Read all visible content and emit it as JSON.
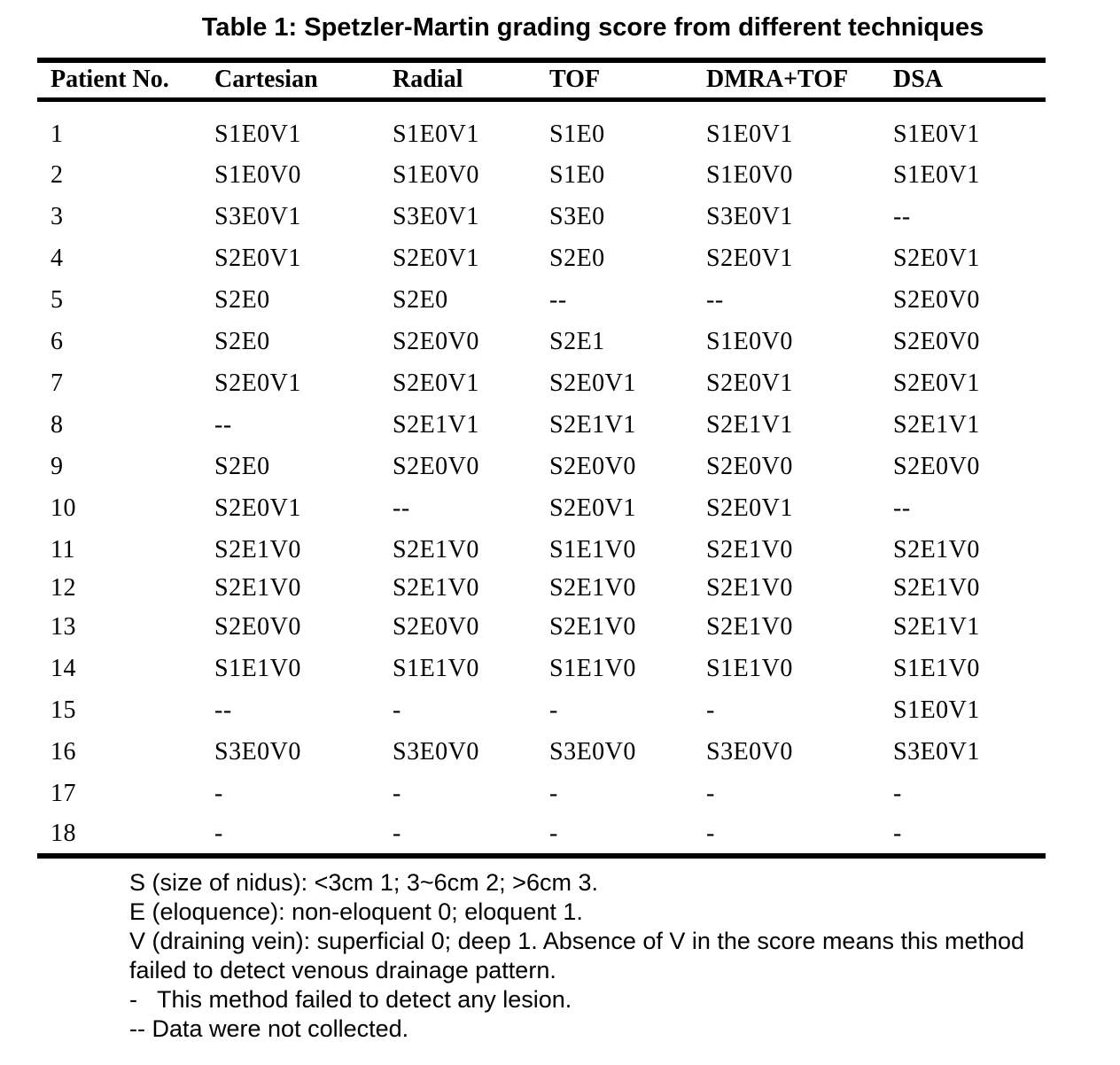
{
  "title": "Table 1: Spetzler-Martin grading score from different techniques",
  "table": {
    "columns": [
      "Patient No.",
      "Cartesian",
      "Radial",
      "TOF",
      "DMRA+TOF",
      "DSA"
    ],
    "rows": [
      [
        "1",
        "S1E0V1",
        "S1E0V1",
        "S1E0",
        "S1E0V1",
        "S1E0V1"
      ],
      [
        "2",
        "S1E0V0",
        "S1E0V0",
        "S1E0",
        "S1E0V0",
        "S1E0V1"
      ],
      [
        "3",
        "S3E0V1",
        "S3E0V1",
        "S3E0",
        "S3E0V1",
        "--"
      ],
      [
        "4",
        "S2E0V1",
        "S2E0V1",
        "S2E0",
        "S2E0V1",
        "S2E0V1"
      ],
      [
        "5",
        "S2E0",
        "S2E0",
        "--",
        "--",
        "S2E0V0"
      ],
      [
        "6",
        "S2E0",
        "S2E0V0",
        "S2E1",
        "S1E0V0",
        "S2E0V0"
      ],
      [
        "7",
        "S2E0V1",
        "S2E0V1",
        "S2E0V1",
        "S2E0V1",
        "S2E0V1"
      ],
      [
        "8",
        "--",
        "S2E1V1",
        "S2E1V1",
        "S2E1V1",
        "S2E1V1"
      ],
      [
        "9",
        "S2E0",
        "S2E0V0",
        "S2E0V0",
        "S2E0V0",
        "S2E0V0"
      ],
      [
        "10",
        "S2E0V1",
        "--",
        "S2E0V1",
        "S2E0V1",
        "--"
      ],
      [
        "11",
        "S2E1V0",
        "S2E1V0",
        "S1E1V0",
        "S2E1V0",
        "S2E1V0"
      ],
      [
        "12",
        "S2E1V0",
        "S2E1V0",
        "S2E1V0",
        "S2E1V0",
        "S2E1V0"
      ],
      [
        "13",
        "S2E0V0",
        "S2E0V0",
        "S2E1V0",
        "S2E1V0",
        "S2E1V1"
      ],
      [
        "14",
        "S1E1V0",
        "S1E1V0",
        "S1E1V0",
        "S1E1V0",
        "S1E1V0"
      ],
      [
        "15",
        "--",
        "-",
        "-",
        "-",
        "S1E0V1"
      ],
      [
        "16",
        "S3E0V0",
        "S3E0V0",
        "S3E0V0",
        "S3E0V0",
        "S3E0V1"
      ],
      [
        "17",
        "-",
        "-",
        "-",
        "-",
        "-"
      ],
      [
        "18",
        "-",
        "-",
        "-",
        "-",
        "-"
      ]
    ]
  },
  "footnotes": [
    "S (size of nidus): <3cm 1; 3~6cm 2; >6cm 3.",
    "E (eloquence): non-eloquent 0; eloquent 1.",
    "V (draining vein): superficial 0; deep 1. Absence of V in the score means this method",
    "failed to detect venous drainage pattern.",
    "-   This method failed to detect any lesion.",
    "-- Data were not collected."
  ],
  "colors": {
    "text": "#000000",
    "background": "#ffffff",
    "rule": "#000000"
  }
}
